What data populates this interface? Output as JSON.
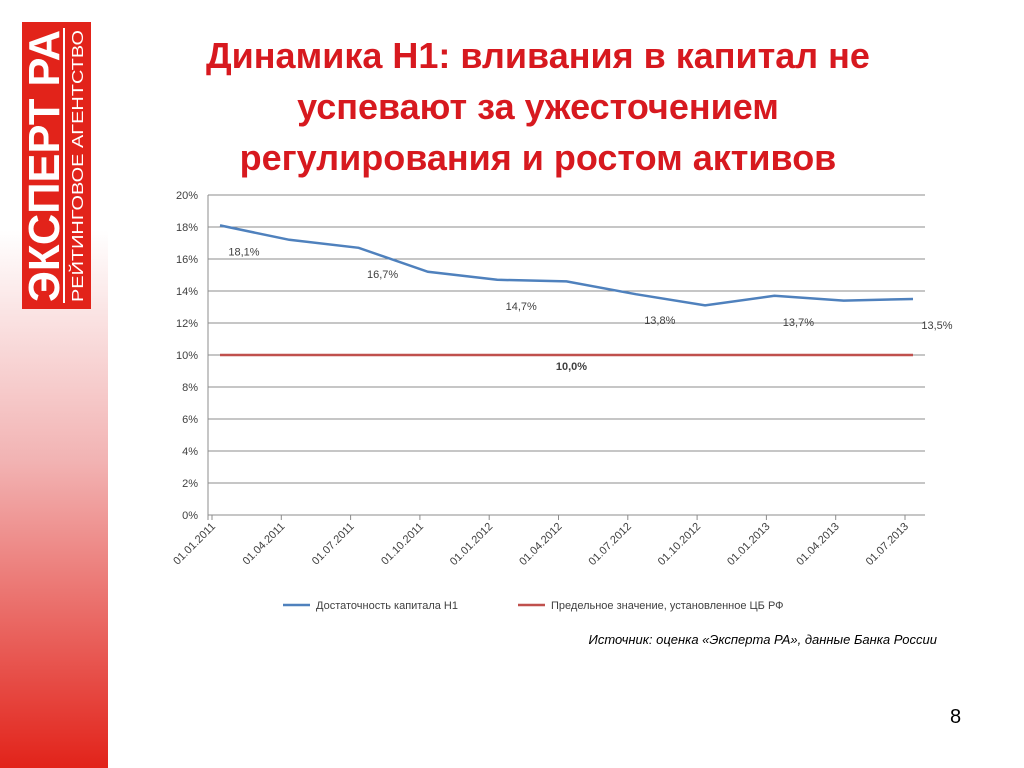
{
  "logo": {
    "name": "ЭКСПЕРТ РА",
    "tagline": "РЕЙТИНГОВОЕ АГЕНТСТВО"
  },
  "title": "Динамика Н1: вливания в капитал не успевают за ужесточением регулирования и ростом активов",
  "chart_data": {
    "type": "line",
    "categories": [
      "01.01.2011",
      "01.04.2011",
      "01.07.2011",
      "01.10.2011",
      "01.01.2012",
      "01.04.2012",
      "01.07.2012",
      "01.10.2012",
      "01.01.2013",
      "01.04.2013",
      "01.07.2013"
    ],
    "series": [
      {
        "name": "Достаточность капитала Н1",
        "color": "#4f81bd",
        "values": [
          18.1,
          17.2,
          16.7,
          15.2,
          14.7,
          14.6,
          13.8,
          13.1,
          13.7,
          13.4,
          13.5
        ],
        "value_labels": [
          "18,1%",
          null,
          "16,7%",
          null,
          "14,7%",
          null,
          "13,8%",
          null,
          "13,7%",
          null,
          "13,5%"
        ]
      },
      {
        "name": "Предельное значение, установленное ЦБ РФ",
        "color": "#c0504d",
        "values": [
          10,
          10,
          10,
          10,
          10,
          10,
          10,
          10,
          10,
          10,
          10
        ],
        "value_labels": [
          null,
          null,
          null,
          null,
          null,
          "10,0%",
          null,
          null,
          null,
          null,
          null
        ]
      }
    ],
    "ylim": [
      0,
      20
    ],
    "yticks": [
      {
        "value": 0,
        "label": "0%"
      },
      {
        "value": 2,
        "label": "2%"
      },
      {
        "value": 4,
        "label": "4%"
      },
      {
        "value": 6,
        "label": "6%"
      },
      {
        "value": 8,
        "label": "8%"
      },
      {
        "value": 10,
        "label": "10%"
      },
      {
        "value": 12,
        "label": "12%"
      },
      {
        "value": 14,
        "label": "14%"
      },
      {
        "value": 16,
        "label": "16%"
      },
      {
        "value": 18,
        "label": "18%"
      },
      {
        "value": 20,
        "label": "20%"
      }
    ],
    "grid": true,
    "legend": "bottom"
  },
  "source": "Источник: оценка «Эксперта РА», данные Банка России",
  "page_number": "8"
}
